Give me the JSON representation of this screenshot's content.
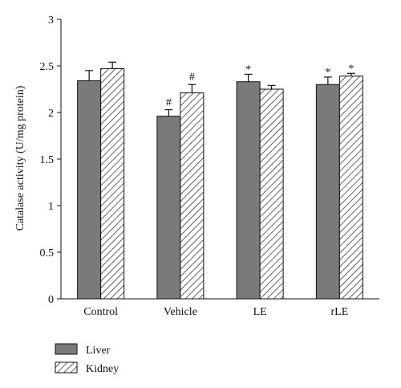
{
  "chart_data": {
    "type": "bar",
    "title": "",
    "xlabel": "",
    "ylabel": "Catalase activity (U/mg protein)",
    "categories": [
      "Control",
      "Vehicle",
      "LE",
      "rLE"
    ],
    "ylim": [
      0,
      3
    ],
    "yticks": [
      "0",
      "0.5",
      "1",
      "1.5",
      "2",
      "2.5",
      "3"
    ],
    "grid": false,
    "legend_position": "bottom-left",
    "series": [
      {
        "name": "Liver",
        "fill": "solid",
        "color": "#7a7a7a",
        "values": [
          2.34,
          1.96,
          2.33,
          2.3
        ],
        "errors": [
          0.11,
          0.07,
          0.08,
          0.08
        ],
        "annotations": [
          "",
          "#",
          "*",
          "*"
        ]
      },
      {
        "name": "Kidney",
        "fill": "hatched",
        "color": "#222222",
        "values": [
          2.47,
          2.21,
          2.25,
          2.39
        ],
        "errors": [
          0.07,
          0.09,
          0.04,
          0.03
        ],
        "annotations": [
          "",
          "#",
          "",
          "*"
        ]
      }
    ]
  }
}
